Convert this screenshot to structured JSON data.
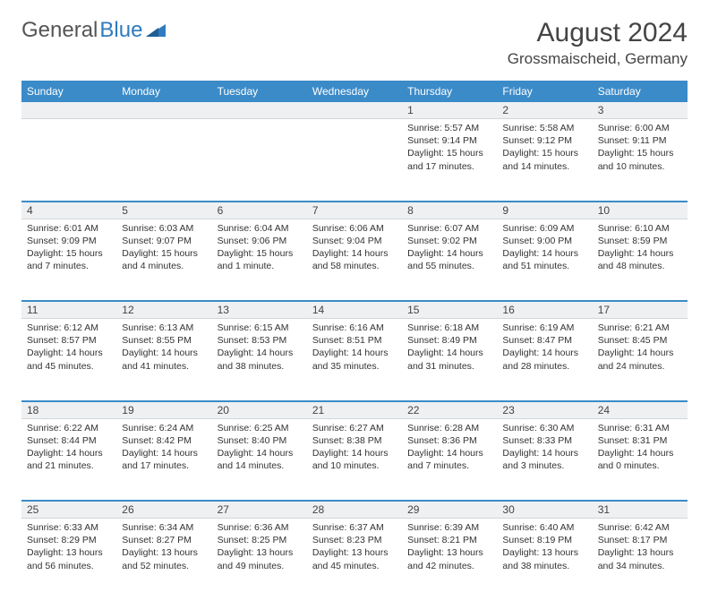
{
  "logo": {
    "text1": "General",
    "text2": "Blue"
  },
  "title": "August 2024",
  "location": "Grossmaischeid, Germany",
  "colors": {
    "header_bg": "#3b8bc8",
    "header_text": "#ffffff",
    "daynum_bg": "#eef0f2",
    "row_divider": "#3b8bc8",
    "body_text": "#333333",
    "logo_gray": "#555555",
    "logo_blue": "#2f7bbf",
    "page_bg": "#ffffff"
  },
  "typography": {
    "month_title_size_pt": 22,
    "location_size_pt": 13,
    "header_cell_size_pt": 9,
    "body_size_pt": 8
  },
  "weekdays": [
    "Sunday",
    "Monday",
    "Tuesday",
    "Wednesday",
    "Thursday",
    "Friday",
    "Saturday"
  ],
  "weeks": [
    [
      null,
      null,
      null,
      null,
      {
        "n": "1",
        "sunrise": "5:57 AM",
        "sunset": "9:14 PM",
        "dl": "15 hours and 17 minutes."
      },
      {
        "n": "2",
        "sunrise": "5:58 AM",
        "sunset": "9:12 PM",
        "dl": "15 hours and 14 minutes."
      },
      {
        "n": "3",
        "sunrise": "6:00 AM",
        "sunset": "9:11 PM",
        "dl": "15 hours and 10 minutes."
      }
    ],
    [
      {
        "n": "4",
        "sunrise": "6:01 AM",
        "sunset": "9:09 PM",
        "dl": "15 hours and 7 minutes."
      },
      {
        "n": "5",
        "sunrise": "6:03 AM",
        "sunset": "9:07 PM",
        "dl": "15 hours and 4 minutes."
      },
      {
        "n": "6",
        "sunrise": "6:04 AM",
        "sunset": "9:06 PM",
        "dl": "15 hours and 1 minute."
      },
      {
        "n": "7",
        "sunrise": "6:06 AM",
        "sunset": "9:04 PM",
        "dl": "14 hours and 58 minutes."
      },
      {
        "n": "8",
        "sunrise": "6:07 AM",
        "sunset": "9:02 PM",
        "dl": "14 hours and 55 minutes."
      },
      {
        "n": "9",
        "sunrise": "6:09 AM",
        "sunset": "9:00 PM",
        "dl": "14 hours and 51 minutes."
      },
      {
        "n": "10",
        "sunrise": "6:10 AM",
        "sunset": "8:59 PM",
        "dl": "14 hours and 48 minutes."
      }
    ],
    [
      {
        "n": "11",
        "sunrise": "6:12 AM",
        "sunset": "8:57 PM",
        "dl": "14 hours and 45 minutes."
      },
      {
        "n": "12",
        "sunrise": "6:13 AM",
        "sunset": "8:55 PM",
        "dl": "14 hours and 41 minutes."
      },
      {
        "n": "13",
        "sunrise": "6:15 AM",
        "sunset": "8:53 PM",
        "dl": "14 hours and 38 minutes."
      },
      {
        "n": "14",
        "sunrise": "6:16 AM",
        "sunset": "8:51 PM",
        "dl": "14 hours and 35 minutes."
      },
      {
        "n": "15",
        "sunrise": "6:18 AM",
        "sunset": "8:49 PM",
        "dl": "14 hours and 31 minutes."
      },
      {
        "n": "16",
        "sunrise": "6:19 AM",
        "sunset": "8:47 PM",
        "dl": "14 hours and 28 minutes."
      },
      {
        "n": "17",
        "sunrise": "6:21 AM",
        "sunset": "8:45 PM",
        "dl": "14 hours and 24 minutes."
      }
    ],
    [
      {
        "n": "18",
        "sunrise": "6:22 AM",
        "sunset": "8:44 PM",
        "dl": "14 hours and 21 minutes."
      },
      {
        "n": "19",
        "sunrise": "6:24 AM",
        "sunset": "8:42 PM",
        "dl": "14 hours and 17 minutes."
      },
      {
        "n": "20",
        "sunrise": "6:25 AM",
        "sunset": "8:40 PM",
        "dl": "14 hours and 14 minutes."
      },
      {
        "n": "21",
        "sunrise": "6:27 AM",
        "sunset": "8:38 PM",
        "dl": "14 hours and 10 minutes."
      },
      {
        "n": "22",
        "sunrise": "6:28 AM",
        "sunset": "8:36 PM",
        "dl": "14 hours and 7 minutes."
      },
      {
        "n": "23",
        "sunrise": "6:30 AM",
        "sunset": "8:33 PM",
        "dl": "14 hours and 3 minutes."
      },
      {
        "n": "24",
        "sunrise": "6:31 AM",
        "sunset": "8:31 PM",
        "dl": "14 hours and 0 minutes."
      }
    ],
    [
      {
        "n": "25",
        "sunrise": "6:33 AM",
        "sunset": "8:29 PM",
        "dl": "13 hours and 56 minutes."
      },
      {
        "n": "26",
        "sunrise": "6:34 AM",
        "sunset": "8:27 PM",
        "dl": "13 hours and 52 minutes."
      },
      {
        "n": "27",
        "sunrise": "6:36 AM",
        "sunset": "8:25 PM",
        "dl": "13 hours and 49 minutes."
      },
      {
        "n": "28",
        "sunrise": "6:37 AM",
        "sunset": "8:23 PM",
        "dl": "13 hours and 45 minutes."
      },
      {
        "n": "29",
        "sunrise": "6:39 AM",
        "sunset": "8:21 PM",
        "dl": "13 hours and 42 minutes."
      },
      {
        "n": "30",
        "sunrise": "6:40 AM",
        "sunset": "8:19 PM",
        "dl": "13 hours and 38 minutes."
      },
      {
        "n": "31",
        "sunrise": "6:42 AM",
        "sunset": "8:17 PM",
        "dl": "13 hours and 34 minutes."
      }
    ]
  ],
  "labels": {
    "sunrise": "Sunrise:",
    "sunset": "Sunset:",
    "daylight": "Daylight:"
  }
}
